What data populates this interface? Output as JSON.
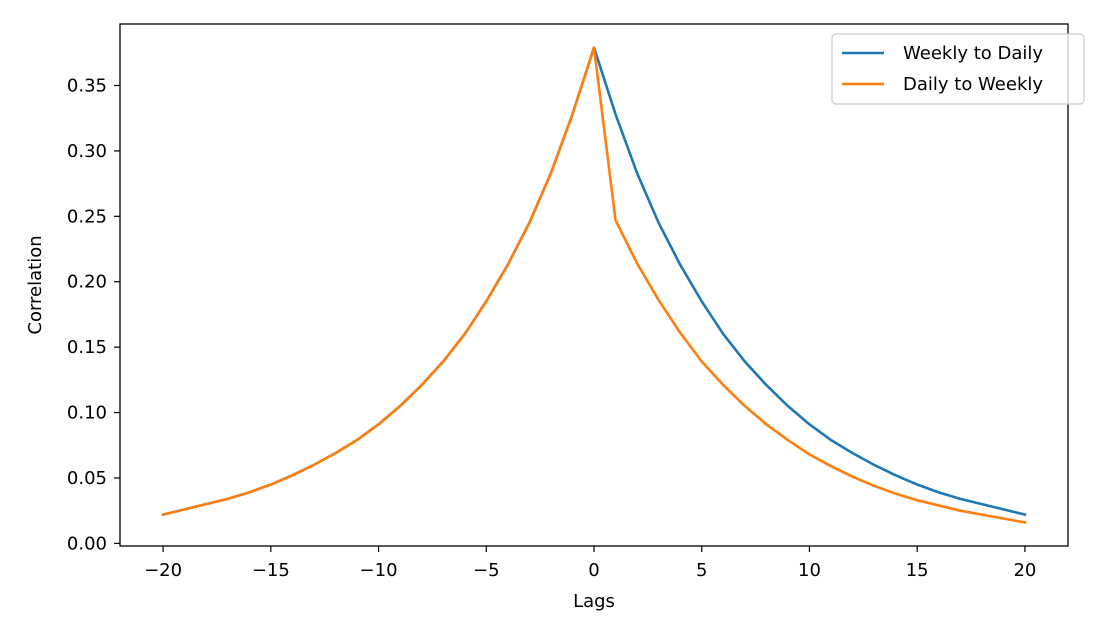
{
  "chart_data": {
    "type": "line",
    "title": "",
    "xlabel": "Lags",
    "ylabel": "Correlation",
    "xlim": [
      -22,
      22
    ],
    "ylim": [
      -0.002,
      0.397
    ],
    "xticks": [
      -20,
      -15,
      -10,
      -5,
      0,
      5,
      10,
      15,
      20
    ],
    "xtick_labels": [
      "−20",
      "−15",
      "−10",
      "−5",
      "0",
      "5",
      "10",
      "15",
      "20"
    ],
    "yticks": [
      0.0,
      0.05,
      0.1,
      0.15,
      0.2,
      0.25,
      0.3,
      0.35
    ],
    "ytick_labels": [
      "0.00",
      "0.05",
      "0.10",
      "0.15",
      "0.20",
      "0.25",
      "0.30",
      "0.35"
    ],
    "grid": false,
    "legend_position": "top-right",
    "x": [
      -20,
      -19,
      -18,
      -17,
      -16,
      -15,
      -14,
      -13,
      -12,
      -11,
      -10,
      -9,
      -8,
      -7,
      -6,
      -5,
      -4,
      -3,
      -2,
      -1,
      0,
      1,
      2,
      3,
      4,
      5,
      6,
      7,
      8,
      9,
      10,
      11,
      12,
      13,
      14,
      15,
      16,
      17,
      18,
      19,
      20
    ],
    "series": [
      {
        "name": "Weekly to Daily",
        "color": "#1f77b4",
        "values": [
          0.022,
          0.026,
          0.03,
          0.034,
          0.039,
          0.045,
          0.052,
          0.06,
          0.069,
          0.079,
          0.091,
          0.105,
          0.121,
          0.139,
          0.16,
          0.185,
          0.213,
          0.245,
          0.283,
          0.328,
          0.379,
          0.328,
          0.283,
          0.245,
          0.213,
          0.185,
          0.16,
          0.139,
          0.121,
          0.105,
          0.091,
          0.079,
          0.069,
          0.06,
          0.052,
          0.045,
          0.039,
          0.034,
          0.03,
          0.026,
          0.022
        ]
      },
      {
        "name": "Daily to Weekly",
        "color": "#ff7f0e",
        "values": [
          0.022,
          0.026,
          0.03,
          0.034,
          0.039,
          0.045,
          0.052,
          0.06,
          0.069,
          0.079,
          0.091,
          0.105,
          0.121,
          0.139,
          0.16,
          0.185,
          0.213,
          0.245,
          0.283,
          0.328,
          0.379,
          0.247,
          0.214,
          0.186,
          0.161,
          0.139,
          0.121,
          0.105,
          0.091,
          0.079,
          0.068,
          0.059,
          0.051,
          0.044,
          0.038,
          0.033,
          0.029,
          0.025,
          0.022,
          0.019,
          0.016
        ]
      }
    ]
  }
}
